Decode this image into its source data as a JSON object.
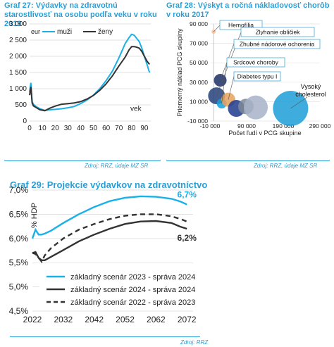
{
  "chart_data": [
    {
      "type": "line",
      "title": "Graf 27: Výdavky na zdravotnú starostlivosť na osobu podľa veku v roku 2019",
      "unit_label": "eur",
      "xlabel": "vek",
      "xlim": [
        0,
        95
      ],
      "ylim": [
        0,
        3000
      ],
      "xticks": [
        "0",
        "10",
        "20",
        "30",
        "40",
        "50",
        "60",
        "70",
        "80",
        "90"
      ],
      "yticks": [
        "0",
        "500",
        "1 000",
        "1 500",
        "2 000",
        "2 500",
        "3 000"
      ],
      "legend": "top-left",
      "series": [
        {
          "name": "muži",
          "color": "#1ab0e8",
          "x": [
            0,
            1,
            2,
            3,
            5,
            8,
            12,
            16,
            20,
            25,
            30,
            35,
            40,
            45,
            50,
            55,
            60,
            65,
            70,
            75,
            78,
            80,
            82,
            84,
            86,
            88,
            90,
            92,
            94
          ],
          "y": [
            900,
            1180,
            600,
            520,
            450,
            380,
            330,
            350,
            360,
            380,
            410,
            450,
            540,
            650,
            800,
            1000,
            1250,
            1550,
            1950,
            2400,
            2580,
            2680,
            2650,
            2550,
            2450,
            2250,
            2000,
            1750,
            1500
          ]
        },
        {
          "name": "ženy",
          "color": "#333333",
          "x": [
            0,
            1,
            2,
            3,
            5,
            8,
            12,
            16,
            20,
            25,
            30,
            35,
            40,
            45,
            50,
            55,
            60,
            65,
            70,
            75,
            78,
            80,
            82,
            84,
            86,
            88,
            90,
            92,
            94
          ],
          "y": [
            800,
            1060,
            560,
            470,
            420,
            350,
            320,
            400,
            460,
            520,
            540,
            560,
            600,
            680,
            790,
            950,
            1150,
            1400,
            1700,
            1980,
            2200,
            2300,
            2300,
            2280,
            2250,
            2150,
            2000,
            1850,
            1750
          ]
        }
      ]
    },
    {
      "type": "scatter",
      "title": "Graf 28: Výskyt a ročná nákladovosť chorôb v roku 2017",
      "xlabel": "Počet ľudí v PCG skupine",
      "ylabel": "Priemerný náklad PCG skupiny",
      "xlim": [
        -10000,
        290000
      ],
      "ylim": [
        -10000,
        90000
      ],
      "xticks": [
        "-10 000",
        "90 000",
        "190 000",
        "290 000"
      ],
      "yticks": [
        "-10 000",
        "10 000",
        "30 000",
        "50 000",
        "70 000",
        "90 000"
      ],
      "bubbles": [
        {
          "x": 0,
          "y": 82000,
          "r": 3,
          "color": "#f4c09a"
        },
        {
          "x": 8000,
          "y": 16000,
          "r": 12,
          "color": "#23407a"
        },
        {
          "x": 18000,
          "y": 32000,
          "r": 9,
          "color": "#1b2f66"
        },
        {
          "x": 22000,
          "y": 8000,
          "r": 7,
          "color": "#14a0dc"
        },
        {
          "x": 40000,
          "y": 12000,
          "r": 10,
          "color": "#e6a15c"
        },
        {
          "x": 62000,
          "y": 3000,
          "r": 12,
          "color": "#1c3a8c"
        },
        {
          "x": 88000,
          "y": 5000,
          "r": 11,
          "color": "#7e8a99"
        },
        {
          "x": 115000,
          "y": 4000,
          "r": 17,
          "color": "#a7b3c8"
        },
        {
          "x": 210000,
          "y": 3000,
          "r": 25,
          "color": "#1c9fd8"
        }
      ],
      "annotations": [
        "Hemofília",
        "Zlyhanie obličiek",
        "Zhubné nádorové ochorenia",
        "Srdcové choroby",
        "Diabetes typu I",
        "Vysoký cholesterol"
      ]
    },
    {
      "type": "line",
      "title": "Graf 29: Projekcie výdavkov na zdravotníctvo",
      "ylabel": "% HDP",
      "xlim": [
        2022,
        2074
      ],
      "ylim": [
        4.5,
        7.0
      ],
      "xticks": [
        "2022",
        "2032",
        "2042",
        "2052",
        "2062",
        "2072"
      ],
      "yticks": [
        "4,5%",
        "5,0%",
        "5,5%",
        "6,0%",
        "6,5%",
        "7,0%"
      ],
      "legend": "bottom-left",
      "annotations": [
        "6,7%",
        "6,2%"
      ],
      "series": [
        {
          "name": "základný scenár 2023 - správa 2024",
          "style": "solid",
          "color": "#1ab0e8",
          "x": [
            2022,
            2023,
            2024,
            2025,
            2026,
            2028,
            2032,
            2037,
            2042,
            2047,
            2052,
            2057,
            2062,
            2067,
            2070,
            2072
          ],
          "y": [
            6.0,
            6.18,
            6.08,
            6.08,
            6.1,
            6.16,
            6.32,
            6.5,
            6.65,
            6.77,
            6.84,
            6.87,
            6.86,
            6.82,
            6.76,
            6.7
          ]
        },
        {
          "name": "základný scenár 2024 - správa 2024",
          "style": "solid",
          "color": "#333333",
          "x": [
            2022,
            2023,
            2024,
            2025,
            2026,
            2028,
            2032,
            2037,
            2042,
            2047,
            2052,
            2057,
            2062,
            2067,
            2070,
            2072
          ],
          "y": [
            5.7,
            5.72,
            5.6,
            5.55,
            5.55,
            5.62,
            5.76,
            5.94,
            6.08,
            6.2,
            6.3,
            6.35,
            6.36,
            6.32,
            6.24,
            6.2
          ]
        },
        {
          "name": "základný scenár 2022 - správa 2023",
          "style": "dashed",
          "color": "#333333",
          "x": [
            2022,
            2023,
            2024,
            2025,
            2026,
            2028,
            2032,
            2037,
            2042,
            2047,
            2052,
            2057,
            2062,
            2067,
            2070,
            2072
          ],
          "y": [
            5.7,
            5.68,
            5.6,
            5.52,
            5.65,
            5.8,
            6.0,
            6.18,
            6.3,
            6.4,
            6.47,
            6.5,
            6.5,
            6.46,
            6.4,
            6.35
          ]
        }
      ]
    }
  ],
  "sources": {
    "g27": "Zdroj: RRZ, údaje MZ SR",
    "g28": "Zdroj: RRZ, údaje MZ SR",
    "g29": "Zdroj: RRZ"
  },
  "titles": {
    "g27": "Graf 27: Výdavky na zdravotnú starostlivosť na osobu podľa veku v roku 2019",
    "g28": "Graf 28: Výskyt a ročná nákladovosť chorôb v roku 2017",
    "g29": "Graf 29: Projekcie výdavkov na zdravotníctvo"
  },
  "colors": {
    "accent": "#2a9fd6",
    "cyan": "#1ab0e8",
    "dark": "#333333"
  }
}
